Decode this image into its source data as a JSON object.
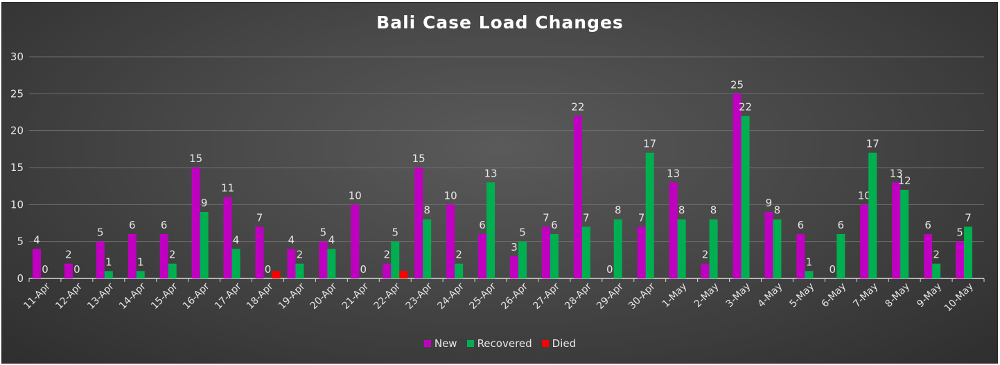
{
  "chart_data": {
    "type": "bar",
    "title": "Bali Case Load Changes",
    "xlabel": "",
    "ylabel": "",
    "ylim": [
      0,
      30
    ],
    "yticks": [
      0,
      5,
      10,
      15,
      20,
      25,
      30
    ],
    "grid": true,
    "legend_position": "bottom",
    "categories": [
      "11-Apr",
      "12-Apr",
      "13-Apr",
      "14-Apr",
      "15-Apr",
      "16-Apr",
      "17-Apr",
      "18-Apr",
      "19-Apr",
      "20-Apr",
      "21-Apr",
      "22-Apr",
      "23-Apr",
      "24-Apr",
      "25-Apr",
      "26-Apr",
      "27-Apr",
      "28-Apr",
      "29-Apr",
      "30-Apr",
      "1-May",
      "2-May",
      "3-May",
      "4-May",
      "5-May",
      "6-May",
      "7-May",
      "8-May",
      "9-May",
      "10-May"
    ],
    "series": [
      {
        "name": "New",
        "color": "#c000c0",
        "values": [
          4,
          2,
          5,
          6,
          6,
          15,
          11,
          7,
          4,
          5,
          10,
          2,
          15,
          10,
          6,
          3,
          7,
          22,
          0,
          7,
          13,
          2,
          25,
          9,
          6,
          0,
          10,
          13,
          6,
          5
        ],
        "labels": [
          "4",
          "2",
          "5",
          "6",
          "6",
          "15",
          "11",
          "7",
          "4",
          "5",
          "10",
          "2",
          "15",
          "10",
          "6",
          "3",
          "7",
          "22",
          "0",
          "7",
          "13",
          "2",
          "25",
          "9",
          "6",
          "0",
          "10",
          "13",
          "6",
          "5"
        ]
      },
      {
        "name": "Recovered",
        "color": "#00b050",
        "values": [
          0,
          0,
          1,
          1,
          2,
          9,
          4,
          0,
          2,
          4,
          0,
          5,
          8,
          2,
          13,
          5,
          6,
          7,
          8,
          17,
          8,
          8,
          22,
          8,
          1,
          6,
          17,
          12,
          2,
          7
        ],
        "labels": [
          "0",
          "0",
          "1",
          "1",
          "2",
          "9",
          "4",
          "0",
          "2",
          "4",
          "0",
          "5",
          "8",
          "2",
          "13",
          "5",
          "6",
          "7",
          "8",
          "17",
          "8",
          "8",
          "22",
          "8",
          "1",
          "6",
          "17",
          "12",
          "2",
          "7"
        ]
      },
      {
        "name": "Died",
        "color": "#ff0000",
        "values": [
          0,
          0,
          0,
          0,
          0,
          0,
          0,
          1,
          0,
          0,
          0,
          1,
          0,
          0,
          0,
          0,
          0,
          0,
          0,
          0,
          0,
          0,
          0,
          0,
          0,
          0,
          0,
          0,
          0,
          0
        ],
        "labels": [
          "",
          "",
          "",
          "",
          "",
          "",
          "",
          "",
          "",
          "",
          "",
          "",
          "",
          "",
          "",
          "",
          "",
          "",
          "",
          "",
          "",
          "",
          "",
          "",
          "",
          "",
          "",
          "",
          "",
          ""
        ]
      }
    ]
  }
}
